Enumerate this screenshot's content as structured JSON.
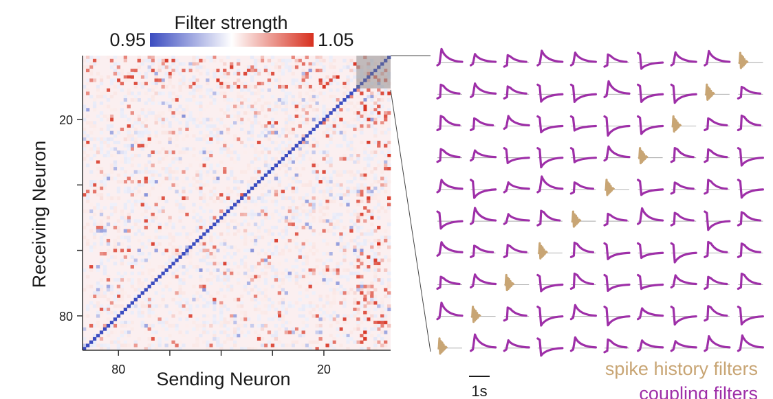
{
  "chart_data": [
    {
      "type": "heatmap",
      "title": "",
      "xlabel": "Sending Neuron",
      "ylabel": "Receiving Neuron",
      "x_ticks": [
        {
          "value": 80,
          "label": "80"
        },
        {
          "value": 20,
          "label": "20"
        }
      ],
      "y_ticks": [
        {
          "value": 20,
          "label": "20"
        },
        {
          "value": 80,
          "label": "80"
        }
      ],
      "x_range": [
        90,
        1
      ],
      "y_range": [
        1,
        90
      ],
      "n_neurons": 90,
      "diagonal_value": 0.95,
      "off_diagonal_range": [
        0.97,
        1.03
      ],
      "colorbar": {
        "title": "Filter strength",
        "min_label": "0.95",
        "max_label": "1.05",
        "vmin": 0.95,
        "vmax": 1.05,
        "colors": [
          "#3b4cc0",
          "#ffffff",
          "#d7301f"
        ]
      },
      "highlight_box": {
        "x": [
          1,
          10
        ],
        "y": [
          1,
          10
        ]
      },
      "grid": false,
      "legend": "none"
    },
    {
      "type": "line",
      "title": "",
      "grid_rows": 10,
      "grid_cols": 10,
      "scale_bar_label": "1s",
      "legend": [
        {
          "name": "spike history filters",
          "color": "#c8a574"
        },
        {
          "name": "coupling filters",
          "color": "#9e2fa8"
        }
      ],
      "spike_history_diagonal": true,
      "coupling_color": "#9e2fa8",
      "history_color": "#c8a574"
    }
  ]
}
